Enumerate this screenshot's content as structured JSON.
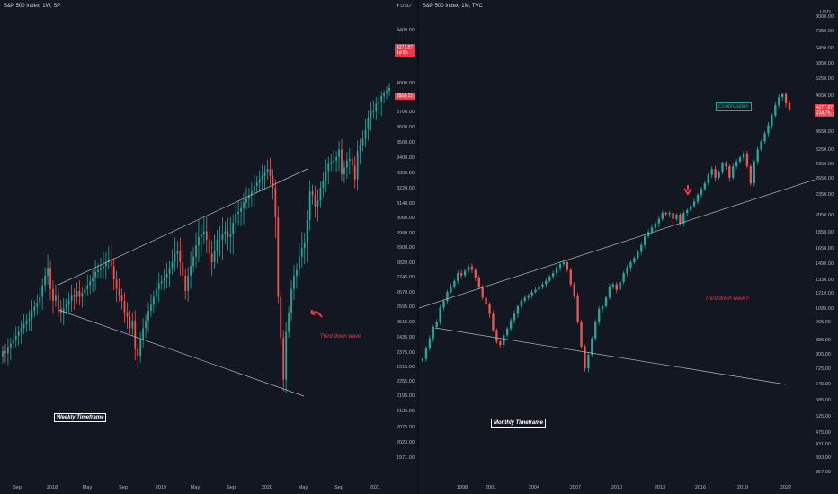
{
  "colors": {
    "background": "#131722",
    "up": "#26a69a",
    "down": "#ef5350",
    "axis_text": "#b2b5be",
    "trendline": "#b2b5be",
    "annotation_red": "#f23645",
    "annotation_green": "#26a69a",
    "label_box": "#ffffff"
  },
  "chart_data": [
    {
      "type": "candlestick",
      "title": "S&P 500 Index, 1W, SP",
      "timeframe_label": "Weekly Timeframe",
      "annotation": "Third down wave",
      "icon": "curved-arrow-icon",
      "currency_label": "USD",
      "price_tags": [
        {
          "line1": "4277.87",
          "line2": "1d 8h"
        },
        {
          "line1": "3916.11",
          "line2": ""
        }
      ],
      "y_ticks": [
        "4400.00",
        "4000.00",
        "3800.00",
        "3700.00",
        "3600.00",
        "3500.00",
        "3400.00",
        "3300.00",
        "3220.00",
        "3140.00",
        "3060.00",
        "2980.00",
        "2900.00",
        "2820.00",
        "2745.00",
        "2670.00",
        "2595.00",
        "2515.00",
        "2435.00",
        "2375.00",
        "2315.00",
        "2255.00",
        "2195.00",
        "2135.00",
        "2075.00",
        "2023.00",
        "1971.00"
      ],
      "x_ticks": [
        "Sep",
        "2018",
        "May",
        "Sep",
        "2019",
        "May",
        "Sep",
        "2020",
        "May",
        "Sep",
        "2021"
      ],
      "series_close": [
        2440,
        2430,
        2460,
        2480,
        2500,
        2520,
        2540,
        2560,
        2580,
        2600,
        2610,
        2650,
        2670,
        2690,
        2720,
        2780,
        2830,
        2870,
        2760,
        2700,
        2730,
        2660,
        2640,
        2660,
        2680,
        2700,
        2730,
        2720,
        2750,
        2720,
        2740,
        2760,
        2780,
        2800,
        2820,
        2850,
        2860,
        2870,
        2880,
        2900,
        2910,
        2880,
        2810,
        2760,
        2730,
        2700,
        2640,
        2620,
        2560,
        2600,
        2450,
        2420,
        2500,
        2560,
        2600,
        2650,
        2680,
        2720,
        2760,
        2790,
        2800,
        2820,
        2840,
        2870,
        2900,
        2930,
        2940,
        2900,
        2830,
        2750,
        2830,
        2880,
        2920,
        2960,
        2990,
        3000,
        3010,
        2980,
        2930,
        2900,
        2940,
        2980,
        2980,
        3000,
        3010,
        2990,
        3000,
        3040,
        3080,
        3090,
        3110,
        3140,
        3160,
        3180,
        3200,
        3230,
        3250,
        3270,
        3290,
        3310,
        3330,
        3290,
        3220,
        3060,
        2720,
        2510,
        2320,
        2540,
        2640,
        2760,
        2830,
        2860,
        2920,
        2950,
        2970,
        3050,
        3200,
        3180,
        3120,
        3150,
        3220,
        3260,
        3320,
        3360,
        3370,
        3380,
        3400,
        3450,
        3300,
        3340,
        3380,
        3390,
        3350,
        3270,
        3440,
        3480,
        3520,
        3580,
        3660,
        3700,
        3700,
        3750,
        3760,
        3800,
        3840,
        3880,
        3920
      ],
      "trendlines": [
        {
          "from": [
            "2018",
            "2780"
          ],
          "to": [
            "2020",
            "3400"
          ]
        },
        {
          "from": [
            "2018",
            "2630"
          ],
          "to": [
            "2020",
            "2240"
          ]
        }
      ]
    },
    {
      "type": "candlestick",
      "title": "S&P 500 Index, 1M, TVC",
      "timeframe_label": "Monthly Timeframe",
      "annotation": "Third down wave?",
      "annotation_box": "Continuation",
      "icon": "down-arrow-icon",
      "currency_label": "USD",
      "price_tags": [
        {
          "line1": "4277.87",
          "line2": "21d 7h"
        }
      ],
      "y_ticks": [
        "8000.00",
        "7250.00",
        "6450.00",
        "5850.00",
        "5250.00",
        "4650.00",
        "4100.00",
        "3650.00",
        "3250.00",
        "2950.00",
        "2650.00",
        "2350.00",
        "2050.00",
        "1850.00",
        "1650.00",
        "1490.00",
        "1330.00",
        "1210.00",
        "1085.00",
        "965.00",
        "885.00",
        "805.00",
        "725.00",
        "645.00",
        "585.00",
        "525.00",
        "475.00",
        "431.00",
        "393.00",
        "357.00"
      ],
      "x_ticks": [
        "1998",
        "2001",
        "2004",
        "2007",
        "2010",
        "2013",
        "2016",
        "2019",
        "2022"
      ],
      "series_close": [
        780,
        840,
        900,
        970,
        1000,
        1090,
        1150,
        1230,
        1280,
        1330,
        1400,
        1380,
        1420,
        1460,
        1430,
        1360,
        1270,
        1180,
        1120,
        1050,
        950,
        880,
        860,
        920,
        960,
        1010,
        1050,
        1100,
        1150,
        1180,
        1200,
        1230,
        1250,
        1280,
        1300,
        1330,
        1370,
        1400,
        1450,
        1480,
        1500,
        1430,
        1300,
        1200,
        1000,
        850,
        735,
        800,
        900,
        1000,
        1080,
        1100,
        1180,
        1280,
        1300,
        1250,
        1320,
        1400,
        1450,
        1500,
        1550,
        1620,
        1700,
        1800,
        1850,
        1900,
        1950,
        2000,
        2080,
        2060,
        2080,
        2000,
        2050,
        1950,
        2080,
        2130,
        2200,
        2280,
        2400,
        2500,
        2600,
        2750,
        2850,
        2700,
        2800,
        2950,
        2900,
        2700,
        2900,
        3000,
        3100,
        3200,
        2900,
        2600,
        3000,
        3300,
        3500,
        3700,
        3900,
        4150,
        4400,
        4600,
        4700,
        4450,
        4300
      ]
    }
  ]
}
